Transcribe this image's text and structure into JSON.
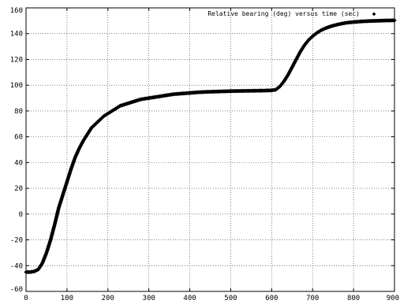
{
  "chart_data": {
    "type": "scatter",
    "title": "",
    "xlabel": "",
    "ylabel": "",
    "xlim": [
      0,
      900
    ],
    "ylim": [
      -60,
      160
    ],
    "grid": true,
    "legend_position": "top-right",
    "x_ticks": [
      0,
      100,
      200,
      300,
      400,
      500,
      600,
      700,
      800,
      900
    ],
    "y_ticks": [
      -60,
      -40,
      -20,
      0,
      20,
      40,
      60,
      80,
      100,
      120,
      140,
      160
    ],
    "series": [
      {
        "name": "Relative bearing (deg) versus time (sec)",
        "marker": "◆",
        "color": "#000000",
        "points": [
          [
            0,
            -45
          ],
          [
            10,
            -45
          ],
          [
            20,
            -44.5
          ],
          [
            30,
            -43
          ],
          [
            40,
            -38
          ],
          [
            50,
            -30
          ],
          [
            60,
            -20
          ],
          [
            70,
            -8
          ],
          [
            80,
            5
          ],
          [
            90,
            15
          ],
          [
            100,
            25
          ],
          [
            110,
            35
          ],
          [
            120,
            44
          ],
          [
            130,
            51
          ],
          [
            140,
            57
          ],
          [
            150,
            62
          ],
          [
            160,
            67
          ],
          [
            170,
            70
          ],
          [
            180,
            73
          ],
          [
            190,
            76
          ],
          [
            200,
            78
          ],
          [
            210,
            80
          ],
          [
            220,
            82
          ],
          [
            230,
            84
          ],
          [
            240,
            85
          ],
          [
            250,
            86
          ],
          [
            260,
            87
          ],
          [
            270,
            88
          ],
          [
            280,
            89
          ],
          [
            290,
            89.5
          ],
          [
            300,
            90
          ],
          [
            320,
            91
          ],
          [
            340,
            92
          ],
          [
            360,
            93
          ],
          [
            380,
            93.5
          ],
          [
            400,
            94
          ],
          [
            420,
            94.5
          ],
          [
            440,
            94.8
          ],
          [
            460,
            95
          ],
          [
            480,
            95.2
          ],
          [
            500,
            95.4
          ],
          [
            520,
            95.5
          ],
          [
            540,
            95.6
          ],
          [
            560,
            95.7
          ],
          [
            580,
            95.8
          ],
          [
            600,
            96
          ],
          [
            610,
            96.5
          ],
          [
            620,
            99
          ],
          [
            630,
            103
          ],
          [
            640,
            108
          ],
          [
            650,
            114
          ],
          [
            660,
            120
          ],
          [
            670,
            126
          ],
          [
            680,
            131
          ],
          [
            690,
            135
          ],
          [
            700,
            138
          ],
          [
            710,
            140.5
          ],
          [
            720,
            142.5
          ],
          [
            730,
            144
          ],
          [
            740,
            145.2
          ],
          [
            750,
            146.2
          ],
          [
            760,
            147
          ],
          [
            770,
            147.7
          ],
          [
            780,
            148.3
          ],
          [
            790,
            148.7
          ],
          [
            800,
            149
          ],
          [
            820,
            149.5
          ],
          [
            840,
            149.8
          ],
          [
            860,
            150
          ],
          [
            880,
            150.2
          ],
          [
            900,
            150.3
          ]
        ]
      }
    ]
  }
}
